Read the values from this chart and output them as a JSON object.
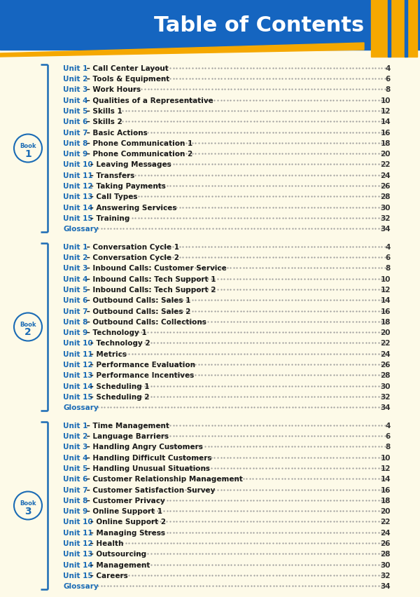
{
  "title": "Table of Contents",
  "title_bg_color": "#1565C0",
  "title_text_color": "#FFFFFF",
  "bg_color": "#FDFAE8",
  "line_color": "#1A6BB5",
  "unit_color": "#1A6BB5",
  "dot_color": "#999999",
  "page_color": "#444444",
  "gold_color": "#F5A800",
  "book1_entries": [
    [
      "Unit 1",
      "– Call Center Layout",
      "4"
    ],
    [
      "Unit 2",
      "– Tools & Equipment",
      "6"
    ],
    [
      "Unit 3",
      "– Work Hours",
      "8"
    ],
    [
      "Unit 4",
      "– Qualities of a Representative",
      "10"
    ],
    [
      "Unit 5",
      "– Skills 1",
      "12"
    ],
    [
      "Unit 6",
      "– Skills 2",
      "14"
    ],
    [
      "Unit 7",
      "– Basic Actions",
      "16"
    ],
    [
      "Unit 8",
      "– Phone Communication 1",
      "18"
    ],
    [
      "Unit 9",
      "– Phone Communication 2",
      "20"
    ],
    [
      "Unit 10",
      "– Leaving Messages",
      "22"
    ],
    [
      "Unit 11",
      "– Transfers",
      "24"
    ],
    [
      "Unit 12",
      "– Taking Payments",
      "26"
    ],
    [
      "Unit 13",
      "– Call Types",
      "28"
    ],
    [
      "Unit 14",
      "– Answering Services",
      "30"
    ],
    [
      "Unit 15",
      "– Training",
      "32"
    ],
    [
      "Glossary",
      "",
      "34"
    ]
  ],
  "book2_entries": [
    [
      "Unit 1",
      "– Conversation Cycle 1",
      "4"
    ],
    [
      "Unit 2",
      "– Conversation Cycle 2",
      "6"
    ],
    [
      "Unit 3",
      "– Inbound Calls: Customer Service",
      "8"
    ],
    [
      "Unit 4",
      "– Inbound Calls: Tech Support 1",
      "10"
    ],
    [
      "Unit 5",
      "– Inbound Calls: Tech Support 2",
      "12"
    ],
    [
      "Unit 6",
      "– Outbound Calls: Sales 1",
      "14"
    ],
    [
      "Unit 7",
      "– Outbound Calls: Sales 2",
      "16"
    ],
    [
      "Unit 8",
      "– Outbound Calls: Collections",
      "18"
    ],
    [
      "Unit 9",
      "– Technology 1",
      "20"
    ],
    [
      "Unit 10",
      "– Technology 2",
      "22"
    ],
    [
      "Unit 11",
      "– Metrics",
      "24"
    ],
    [
      "Unit 12",
      "– Performance Evaluation",
      "26"
    ],
    [
      "Unit 13",
      "– Performance Incentives",
      "28"
    ],
    [
      "Unit 14",
      "– Scheduling 1",
      "30"
    ],
    [
      "Unit 15",
      "– Scheduling 2",
      "32"
    ],
    [
      "Glossary",
      "",
      "34"
    ]
  ],
  "book3_entries": [
    [
      "Unit 1",
      "– Time Management",
      "4"
    ],
    [
      "Unit 2",
      "– Language Barriers",
      "6"
    ],
    [
      "Unit 3",
      "– Handling Angry Customers",
      "8"
    ],
    [
      "Unit 4",
      "– Handling Difficult Customers",
      "10"
    ],
    [
      "Unit 5",
      "– Handling Unusual Situations",
      "12"
    ],
    [
      "Unit 6",
      "– Customer Relationship Management",
      "14"
    ],
    [
      "Unit 7",
      "– Customer Satisfaction Survey",
      "16"
    ],
    [
      "Unit 8",
      "– Customer Privacy",
      "18"
    ],
    [
      "Unit 9",
      "– Online Support 1",
      "20"
    ],
    [
      "Unit 10",
      "– Online Support 2",
      "22"
    ],
    [
      "Unit 11",
      "– Managing Stress",
      "24"
    ],
    [
      "Unit 12",
      "– Health",
      "26"
    ],
    [
      "Unit 13",
      "– Outsourcing",
      "28"
    ],
    [
      "Unit 14",
      "– Management",
      "30"
    ],
    [
      "Unit 15",
      "– Careers",
      "32"
    ],
    [
      "Glossary",
      "",
      "34"
    ]
  ],
  "figsize": [
    6.0,
    8.53
  ],
  "dpi": 100
}
